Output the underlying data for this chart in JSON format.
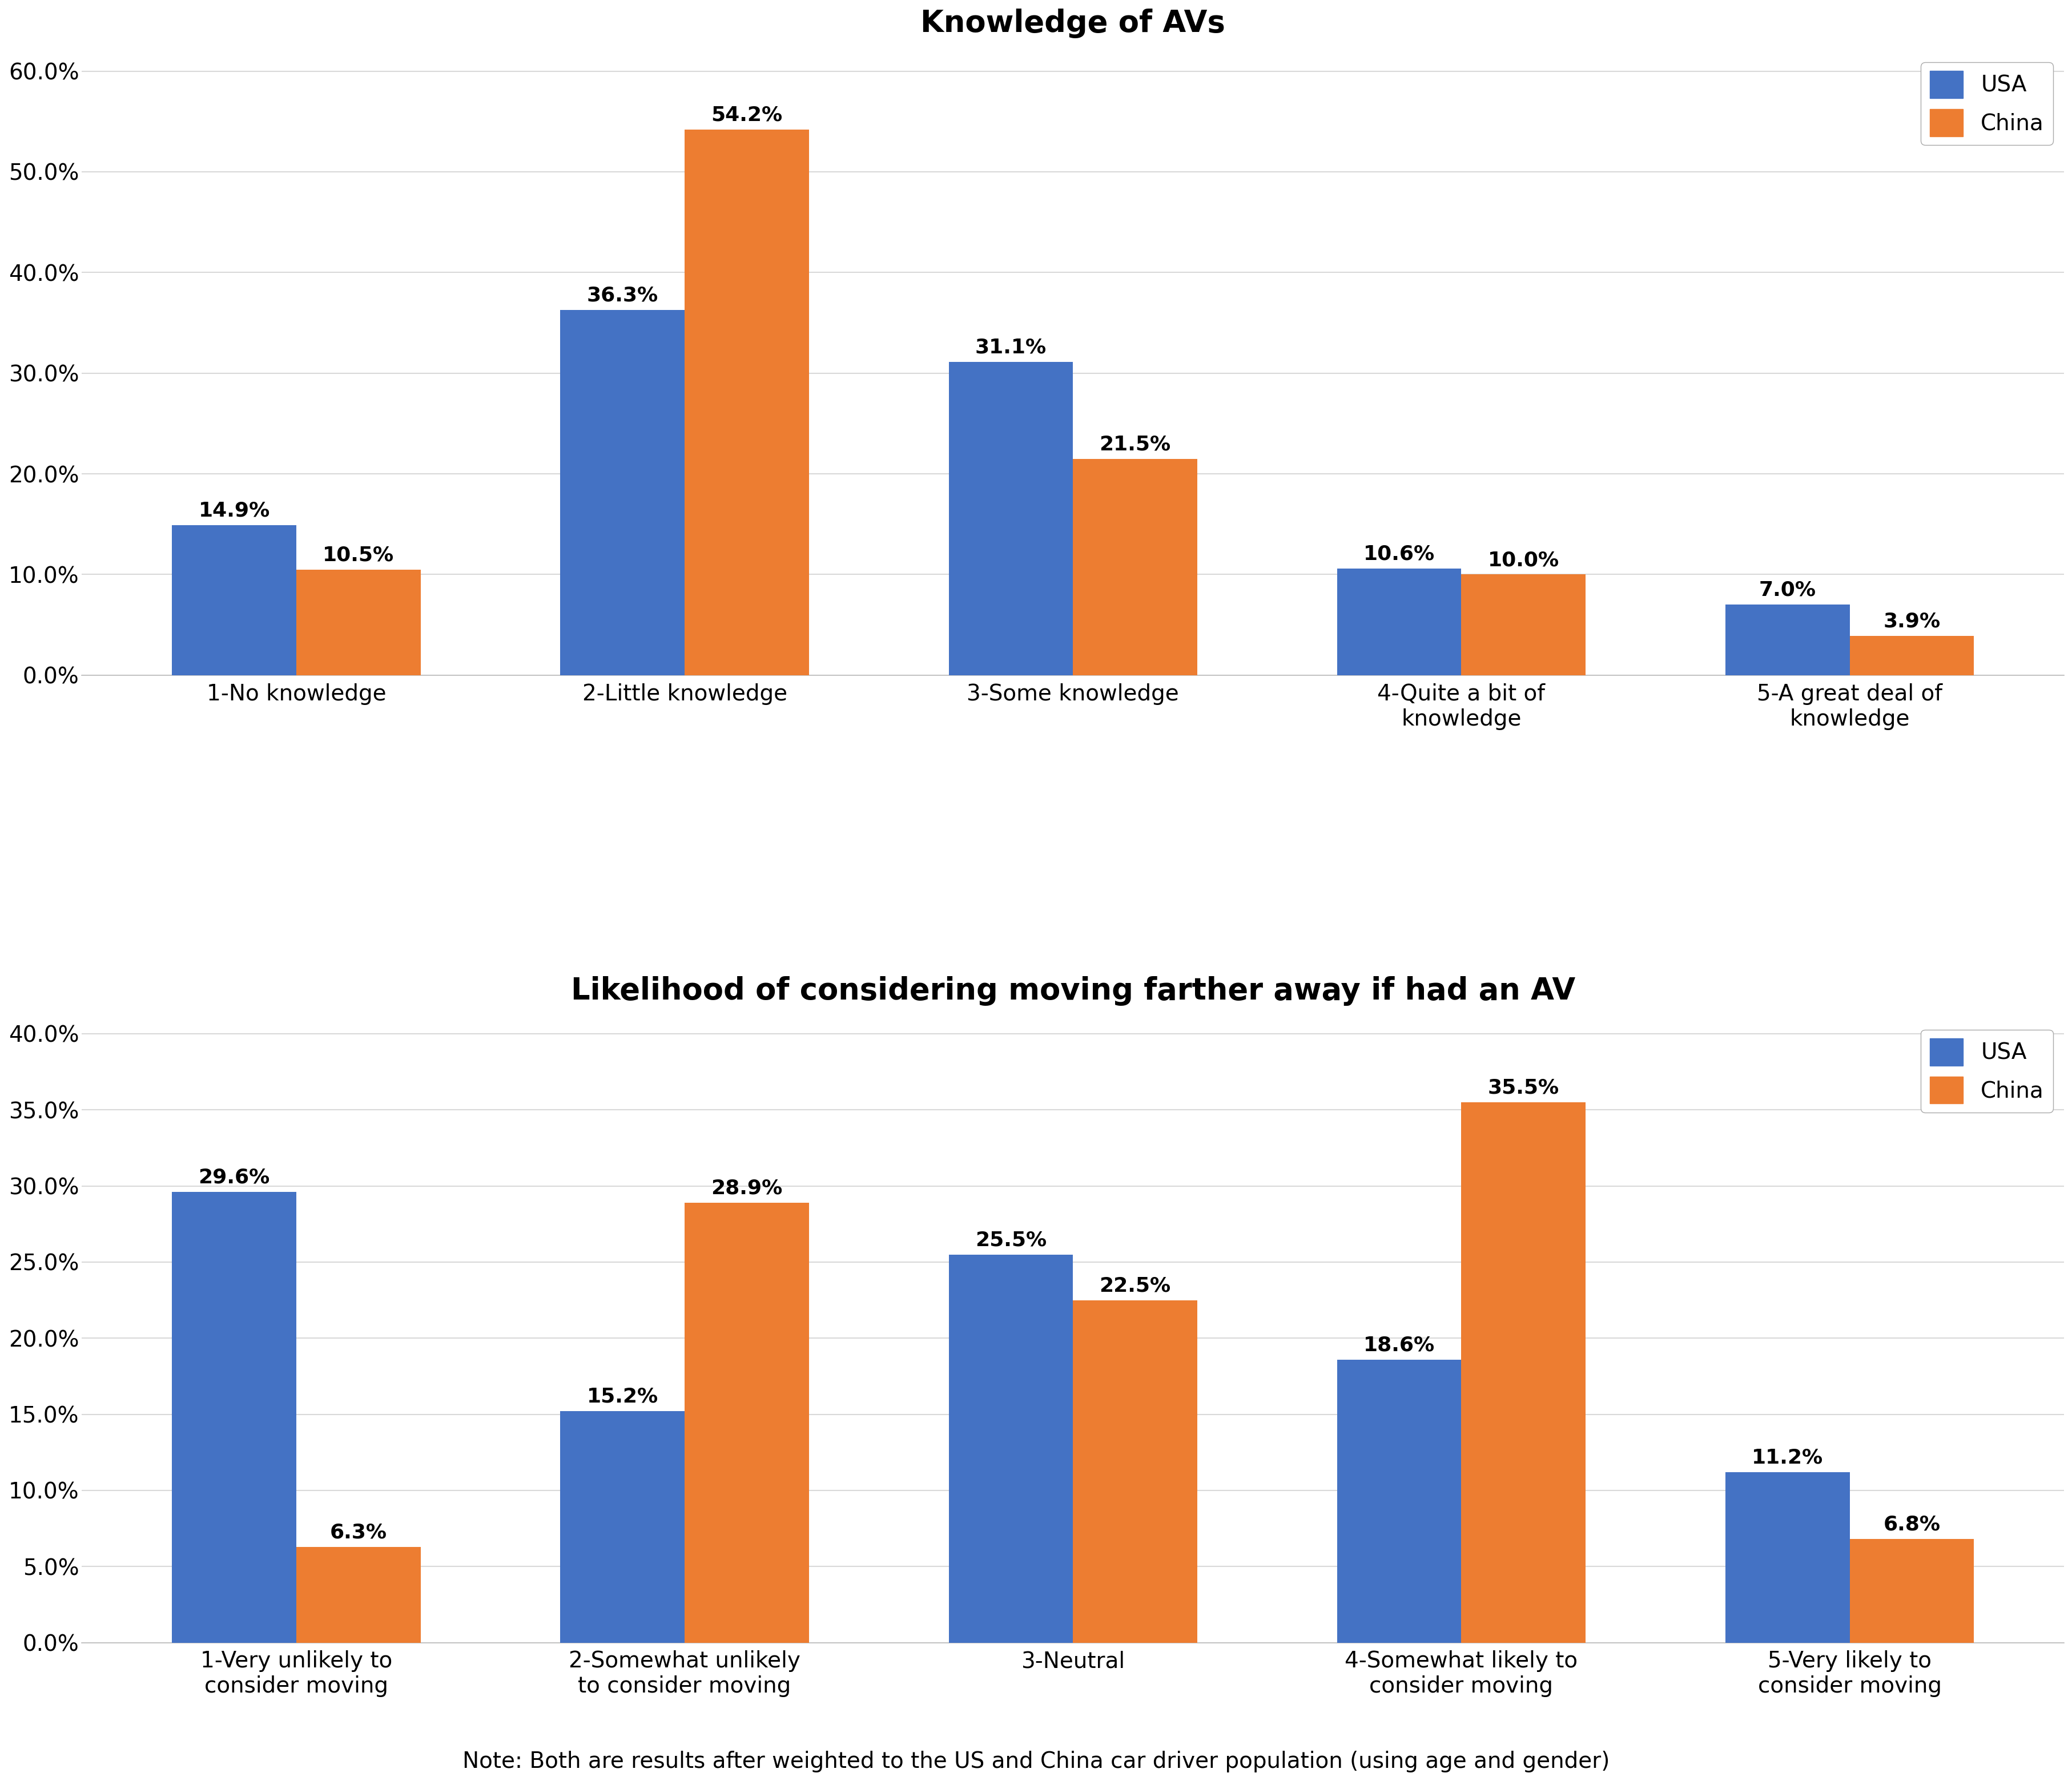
{
  "chart1": {
    "title": "Knowledge of AVs",
    "categories": [
      "1-No knowledge",
      "2-Little knowledge",
      "3-Some knowledge",
      "4-Quite a bit of\nknowledge",
      "5-A great deal of\nknowledge"
    ],
    "usa_values": [
      14.9,
      36.3,
      31.1,
      10.6,
      7.0
    ],
    "china_values": [
      10.5,
      54.2,
      21.5,
      10.0,
      3.9
    ],
    "ylim": [
      0,
      62.0
    ],
    "yticks": [
      0,
      10.0,
      20.0,
      30.0,
      40.0,
      50.0,
      60.0
    ],
    "ytick_labels": [
      "0.0%",
      "10.0%",
      "20.0%",
      "30.0%",
      "40.0%",
      "50.0%",
      "60.0%"
    ]
  },
  "chart2": {
    "title": "Likelihood of considering moving farther away if had an AV",
    "categories": [
      "1-Very unlikely to\nconsider moving",
      "2-Somewhat unlikely\nto consider moving",
      "3-Neutral",
      "4-Somewhat likely to\nconsider moving",
      "5-Very likely to\nconsider moving"
    ],
    "usa_values": [
      29.6,
      15.2,
      25.5,
      18.6,
      11.2
    ],
    "china_values": [
      6.3,
      28.9,
      22.5,
      35.5,
      6.8
    ],
    "ylim": [
      0,
      41.0
    ],
    "yticks": [
      0,
      5.0,
      10.0,
      15.0,
      20.0,
      25.0,
      30.0,
      35.0,
      40.0
    ],
    "ytick_labels": [
      "0.0%",
      "5.0%",
      "10.0%",
      "15.0%",
      "20.0%",
      "25.0%",
      "30.0%",
      "35.0%",
      "40.0%"
    ]
  },
  "usa_color": "#4472C4",
  "china_color": "#ED7D31",
  "background_color": "#FFFFFF",
  "grid_color": "#D9D9D9",
  "bar_width": 0.32,
  "note": "Note: Both are results after weighted to the US and China car driver population (using age and gender)",
  "title_fontsize": 38,
  "label_fontsize": 28,
  "tick_fontsize": 28,
  "legend_fontsize": 28,
  "annotation_fontsize": 26
}
